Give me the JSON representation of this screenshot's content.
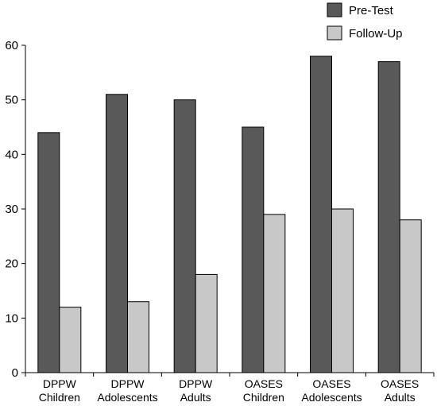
{
  "chart_data": {
    "type": "bar",
    "categories": [
      [
        "DPPW",
        "Children"
      ],
      [
        "DPPW",
        "Adolescents"
      ],
      [
        "DPPW",
        "Adults"
      ],
      [
        "OASES",
        "Children"
      ],
      [
        "OASES",
        "Adolescents"
      ],
      [
        "OASES",
        "Adults"
      ]
    ],
    "series": [
      {
        "name": "Pre-Test",
        "values": [
          44,
          51,
          50,
          45,
          58,
          57
        ],
        "color": "#595959"
      },
      {
        "name": "Follow-Up",
        "values": [
          12,
          13,
          18,
          29,
          30,
          28
        ],
        "color": "#c8c8c8"
      }
    ],
    "yticks": [
      "0",
      "10",
      "20",
      "30",
      "40",
      "50",
      "60"
    ],
    "ylim": [
      0,
      60
    ],
    "grid": false,
    "legend": "top-right",
    "title": "",
    "xlabel": "",
    "ylabel": ""
  }
}
